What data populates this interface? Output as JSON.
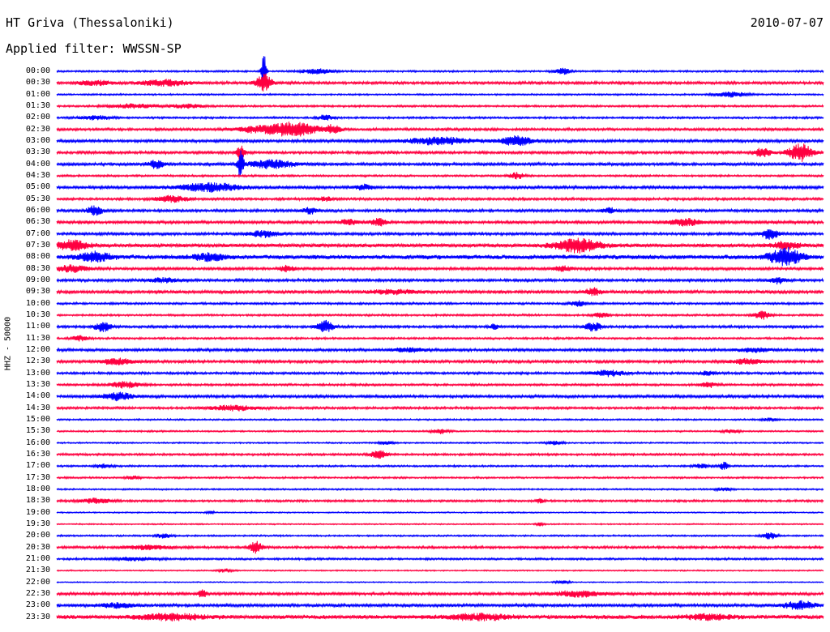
{
  "header": {
    "station": "HT Griva (Thessaloniki)",
    "date": "2010-07-07",
    "filter_label": "Applied filter: WWSSN-SP"
  },
  "chart_data": {
    "type": "line",
    "title": "HT Griva (Thessaloniki)",
    "subtitle": "Applied filter: WWSSN-SP",
    "date": "2010-07-07",
    "ylabel": "HHZ - 50000",
    "xlabel": "",
    "grid": false,
    "row_labels": [
      "00:00",
      "00:30",
      "01:00",
      "01:30",
      "02:00",
      "02:30",
      "03:00",
      "03:30",
      "04:00",
      "04:30",
      "05:00",
      "05:30",
      "06:00",
      "06:30",
      "07:00",
      "07:30",
      "08:00",
      "08:30",
      "09:00",
      "09:30",
      "10:00",
      "10:30",
      "11:00",
      "11:30",
      "12:00",
      "12:30",
      "13:00",
      "13:30",
      "14:00",
      "14:30",
      "15:00",
      "15:30",
      "16:00",
      "16:30",
      "17:00",
      "17:30",
      "18:00",
      "18:30",
      "19:00",
      "19:30",
      "20:00",
      "20:30",
      "21:00",
      "21:30",
      "22:00",
      "22:30",
      "23:00",
      "23:30"
    ],
    "colors": [
      "#0000ff",
      "#ff0040"
    ],
    "traces": [
      {
        "level": 0.2,
        "events": [
          [
            0.27,
            4.0,
            0.003
          ],
          [
            0.34,
            0.5,
            0.02
          ],
          [
            0.66,
            0.6,
            0.01
          ]
        ]
      },
      {
        "level": 0.3,
        "events": [
          [
            0.05,
            0.5,
            0.02
          ],
          [
            0.14,
            0.6,
            0.03
          ],
          [
            0.27,
            1.8,
            0.01
          ]
        ]
      },
      {
        "level": 0.18,
        "events": [
          [
            0.88,
            0.5,
            0.02
          ]
        ]
      },
      {
        "level": 0.22,
        "events": [
          [
            0.1,
            0.4,
            0.03
          ],
          [
            0.17,
            0.4,
            0.02
          ]
        ]
      },
      {
        "level": 0.22,
        "events": [
          [
            0.05,
            0.4,
            0.02
          ],
          [
            0.35,
            0.5,
            0.01
          ]
        ]
      },
      {
        "level": 0.28,
        "events": [
          [
            0.26,
            0.6,
            0.03
          ],
          [
            0.31,
            1.4,
            0.03
          ],
          [
            0.36,
            0.8,
            0.01
          ]
        ]
      },
      {
        "level": 0.32,
        "events": [
          [
            0.5,
            0.7,
            0.04
          ],
          [
            0.6,
            0.9,
            0.02
          ]
        ]
      },
      {
        "level": 0.3,
        "events": [
          [
            0.24,
            1.5,
            0.005
          ],
          [
            0.97,
            1.8,
            0.015
          ],
          [
            0.92,
            0.9,
            0.01
          ]
        ]
      },
      {
        "level": 0.32,
        "events": [
          [
            0.13,
            0.8,
            0.01
          ],
          [
            0.24,
            2.8,
            0.004
          ],
          [
            0.28,
            0.8,
            0.03
          ]
        ]
      },
      {
        "level": 0.22,
        "events": [
          [
            0.6,
            0.6,
            0.01
          ]
        ]
      },
      {
        "level": 0.32,
        "events": [
          [
            0.2,
            0.8,
            0.04
          ],
          [
            0.4,
            0.5,
            0.01
          ]
        ]
      },
      {
        "level": 0.28,
        "events": [
          [
            0.15,
            0.6,
            0.02
          ],
          [
            0.35,
            0.4,
            0.01
          ]
        ]
      },
      {
        "level": 0.3,
        "events": [
          [
            0.05,
            1.0,
            0.01
          ],
          [
            0.33,
            0.6,
            0.01
          ],
          [
            0.72,
            0.5,
            0.01
          ]
        ]
      },
      {
        "level": 0.32,
        "events": [
          [
            0.38,
            0.6,
            0.01
          ],
          [
            0.42,
            0.7,
            0.01
          ],
          [
            0.82,
            0.7,
            0.02
          ]
        ]
      },
      {
        "level": 0.3,
        "events": [
          [
            0.27,
            0.6,
            0.02
          ],
          [
            0.93,
            1.2,
            0.01
          ]
        ]
      },
      {
        "level": 0.42,
        "events": [
          [
            0.02,
            1.0,
            0.02
          ],
          [
            0.68,
            1.3,
            0.03
          ],
          [
            0.95,
            0.6,
            0.02
          ]
        ]
      },
      {
        "level": 0.5,
        "events": [
          [
            0.05,
            0.9,
            0.02
          ],
          [
            0.95,
            1.8,
            0.02
          ],
          [
            0.2,
            0.6,
            0.02
          ]
        ]
      },
      {
        "level": 0.3,
        "events": [
          [
            0.02,
            0.7,
            0.02
          ],
          [
            0.3,
            0.6,
            0.01
          ],
          [
            0.66,
            0.5,
            0.01
          ]
        ]
      },
      {
        "level": 0.3,
        "events": [
          [
            0.14,
            0.4,
            0.02
          ],
          [
            0.94,
            0.6,
            0.01
          ]
        ]
      },
      {
        "level": 0.34,
        "events": [
          [
            0.7,
            0.7,
            0.01
          ],
          [
            0.44,
            0.4,
            0.03
          ]
        ]
      },
      {
        "level": 0.24,
        "events": [
          [
            0.68,
            0.6,
            0.01
          ]
        ]
      },
      {
        "level": 0.22,
        "events": [
          [
            0.71,
            0.5,
            0.01
          ],
          [
            0.92,
            0.8,
            0.01
          ]
        ]
      },
      {
        "level": 0.28,
        "events": [
          [
            0.06,
            1.0,
            0.01
          ],
          [
            0.35,
            1.2,
            0.01
          ],
          [
            0.57,
            0.6,
            0.005
          ],
          [
            0.7,
            0.9,
            0.01
          ]
        ]
      },
      {
        "level": 0.22,
        "events": [
          [
            0.03,
            0.5,
            0.01
          ]
        ]
      },
      {
        "level": 0.3,
        "events": [
          [
            0.46,
            0.4,
            0.02
          ],
          [
            0.91,
            0.4,
            0.02
          ]
        ]
      },
      {
        "level": 0.3,
        "events": [
          [
            0.08,
            0.6,
            0.02
          ],
          [
            0.9,
            0.5,
            0.02
          ]
        ]
      },
      {
        "level": 0.26,
        "events": [
          [
            0.72,
            0.6,
            0.02
          ],
          [
            0.85,
            0.4,
            0.01
          ]
        ]
      },
      {
        "level": 0.24,
        "events": [
          [
            0.09,
            0.6,
            0.02
          ],
          [
            0.85,
            0.5,
            0.01
          ]
        ]
      },
      {
        "level": 0.32,
        "events": [
          [
            0.08,
            0.7,
            0.02
          ]
        ]
      },
      {
        "level": 0.26,
        "events": [
          [
            0.23,
            0.5,
            0.03
          ]
        ]
      },
      {
        "level": 0.18,
        "events": [
          [
            0.93,
            0.3,
            0.01
          ]
        ]
      },
      {
        "level": 0.18,
        "events": [
          [
            0.5,
            0.5,
            0.01
          ],
          [
            0.88,
            0.4,
            0.01
          ]
        ]
      },
      {
        "level": 0.16,
        "events": [
          [
            0.43,
            0.4,
            0.01
          ],
          [
            0.65,
            0.4,
            0.01
          ]
        ]
      },
      {
        "level": 0.24,
        "events": [
          [
            0.42,
            0.9,
            0.01
          ]
        ]
      },
      {
        "level": 0.2,
        "events": [
          [
            0.06,
            0.4,
            0.01
          ],
          [
            0.84,
            0.4,
            0.01
          ],
          [
            0.87,
            0.8,
            0.005
          ]
        ]
      },
      {
        "level": 0.2,
        "events": [
          [
            0.1,
            0.3,
            0.01
          ]
        ]
      },
      {
        "level": 0.18,
        "events": [
          [
            0.87,
            0.3,
            0.01
          ]
        ]
      },
      {
        "level": 0.24,
        "events": [
          [
            0.05,
            0.5,
            0.02
          ],
          [
            0.63,
            0.4,
            0.005
          ]
        ]
      },
      {
        "level": 0.14,
        "events": [
          [
            0.2,
            0.3,
            0.005
          ]
        ]
      },
      {
        "level": 0.14,
        "events": [
          [
            0.63,
            0.3,
            0.005
          ]
        ]
      },
      {
        "level": 0.18,
        "events": [
          [
            0.14,
            0.5,
            0.01
          ],
          [
            0.93,
            0.7,
            0.01
          ]
        ]
      },
      {
        "level": 0.26,
        "events": [
          [
            0.26,
            1.2,
            0.008
          ],
          [
            0.12,
            0.4,
            0.03
          ]
        ]
      },
      {
        "level": 0.22,
        "events": [
          [
            0.1,
            0.3,
            0.03
          ]
        ]
      },
      {
        "level": 0.14,
        "events": [
          [
            0.22,
            0.3,
            0.01
          ]
        ]
      },
      {
        "level": 0.12,
        "events": [
          [
            0.66,
            0.3,
            0.01
          ]
        ]
      },
      {
        "level": 0.3,
        "events": [
          [
            0.19,
            0.9,
            0.005
          ],
          [
            0.68,
            0.6,
            0.03
          ]
        ]
      },
      {
        "level": 0.34,
        "events": [
          [
            0.97,
            0.8,
            0.02
          ],
          [
            0.08,
            0.4,
            0.02
          ]
        ]
      },
      {
        "level": 0.46,
        "events": [
          [
            0.15,
            0.6,
            0.04
          ],
          [
            0.55,
            0.5,
            0.04
          ],
          [
            0.85,
            0.5,
            0.03
          ]
        ]
      }
    ]
  }
}
